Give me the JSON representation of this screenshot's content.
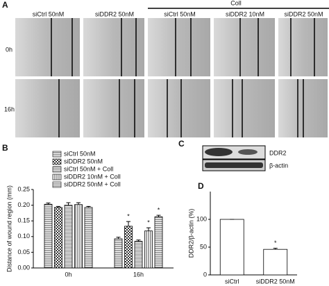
{
  "panel_labels": [
    "A",
    "B",
    "C",
    "D"
  ],
  "panel_a": {
    "col_headers": [
      "siCtrl 50nM",
      "siDDR2 50nM",
      "siCtrl 50nM",
      "siDDR2 10nM",
      "siDDR2 50nM"
    ],
    "group_label": "Coll",
    "row_labels": [
      "0h",
      "16h"
    ]
  },
  "panel_c": {
    "bands": [
      "DDR2",
      "β-actin"
    ]
  },
  "chart_data": [
    {
      "type": "bar",
      "categories": [
        "0h",
        "16h"
      ],
      "y_label": "Distance of wound region (mm)",
      "ylim": [
        0,
        0.25
      ],
      "yticks": [
        {
          "value": 0,
          "label": "0.00"
        },
        {
          "value": 0.05,
          "label": "0.05"
        },
        {
          "value": 0.1,
          "label": "0.10"
        },
        {
          "value": 0.15,
          "label": "0.15"
        },
        {
          "value": 0.2,
          "label": "0.20"
        },
        {
          "value": 0.25,
          "label": "0.25"
        }
      ],
      "legend": "top",
      "series": [
        {
          "name": "siCtrl 50nM",
          "pattern": "hlines",
          "values": [
            0.203,
            0.093
          ],
          "errors": [
            0.004,
            0.005
          ],
          "significance": [
            null,
            null
          ]
        },
        {
          "name": "siDDR2 50nM",
          "pattern": "checker",
          "values": [
            0.193,
            0.133
          ],
          "errors": [
            0.003,
            0.015
          ],
          "significance": [
            null,
            "*"
          ]
        },
        {
          "name": "siCtrl 50nM + Coll",
          "pattern": "hdense",
          "values": [
            0.2,
            0.085
          ],
          "errors": [
            0.008,
            0.004
          ],
          "significance": [
            null,
            null
          ]
        },
        {
          "name": "siDDR2 10nM + Coll",
          "pattern": "vlines",
          "values": [
            0.202,
            0.118
          ],
          "errors": [
            0.006,
            0.01
          ],
          "significance": [
            null,
            "*"
          ]
        },
        {
          "name": "siDDR2 50nM + Coll",
          "pattern": "hlines",
          "values": [
            0.193,
            0.163
          ],
          "errors": [
            0.003,
            0.005
          ],
          "significance": [
            null,
            "*"
          ]
        }
      ]
    },
    {
      "type": "bar",
      "categories": [
        "siCtrl",
        "siDDR2 50nM"
      ],
      "y_label": "DDR2/β-actin (%)",
      "ylim": [
        0,
        150
      ],
      "yticks": [
        0,
        50,
        100
      ],
      "color": "#ffffff",
      "values": [
        100,
        46
      ],
      "errors": [
        0,
        2
      ],
      "significance": [
        null,
        "*"
      ]
    }
  ]
}
